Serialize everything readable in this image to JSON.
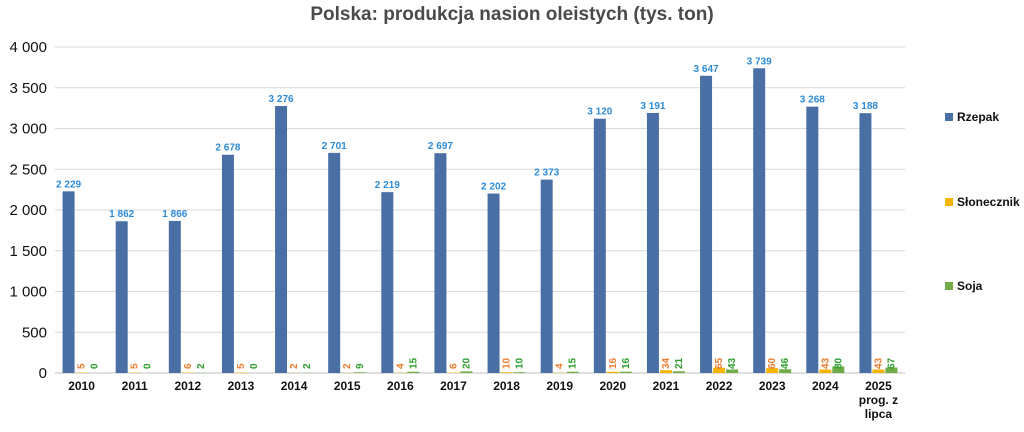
{
  "chart_data": {
    "type": "bar",
    "title": "Polska: produkcja nasion oleistych (tys. ton)",
    "xlabel": "",
    "ylabel": "",
    "ylim": [
      0,
      4000
    ],
    "yticks": [
      0,
      500,
      1000,
      1500,
      2000,
      2500,
      3000,
      3500,
      4000
    ],
    "ytick_labels": [
      "0",
      "500",
      "1 000",
      "1 500",
      "2 000",
      "2 500",
      "3 000",
      "3 500",
      "4 000"
    ],
    "grid": true,
    "legend_position": "right",
    "categories": [
      "2010",
      "2011",
      "2012",
      "2013",
      "2014",
      "2015",
      "2016",
      "2017",
      "2018",
      "2019",
      "2020",
      "2021",
      "2022",
      "2023",
      "2024",
      "2025 prog. z lipca"
    ],
    "category_lines": [
      [
        "2010"
      ],
      [
        "2011"
      ],
      [
        "2012"
      ],
      [
        "2013"
      ],
      [
        "2014"
      ],
      [
        "2015"
      ],
      [
        "2016"
      ],
      [
        "2017"
      ],
      [
        "2018"
      ],
      [
        "2019"
      ],
      [
        "2020"
      ],
      [
        "2021"
      ],
      [
        "2022"
      ],
      [
        "2023"
      ],
      [
        "2024"
      ],
      [
        "2025",
        "prog. z",
        "lipca"
      ]
    ],
    "series": [
      {
        "name": "Rzepak",
        "color": "#4a6fa5",
        "label_color": "#2e8bd6",
        "values": [
          2229,
          1862,
          1866,
          2678,
          3276,
          2701,
          2219,
          2697,
          2202,
          2373,
          3120,
          3191,
          3647,
          3739,
          3268,
          3188
        ],
        "labels": [
          "2 229",
          "1 862",
          "1 866",
          "2 678",
          "3 276",
          "2 701",
          "2 219",
          "2 697",
          "2 202",
          "2 373",
          "3 120",
          "3 191",
          "3 647",
          "3 739",
          "3 268",
          "3 188"
        ]
      },
      {
        "name": "Słonecznik",
        "color": "#f5b400",
        "label_color": "#ed7d31",
        "values": [
          5,
          5,
          6,
          5,
          2,
          2,
          4,
          6,
          10,
          4,
          16,
          34,
          65,
          60,
          43,
          43
        ],
        "labels": [
          "5",
          "5",
          "6",
          "5",
          "2",
          "2",
          "4",
          "6",
          "10",
          "4",
          "16",
          "34",
          "65",
          "60",
          "43",
          "43"
        ]
      },
      {
        "name": "Soja",
        "color": "#70ad47",
        "label_color": "#2e9e2e",
        "values": [
          0,
          0,
          2,
          0,
          2,
          9,
          15,
          20,
          10,
          15,
          16,
          21,
          43,
          46,
          80,
          67
        ],
        "labels": [
          "0",
          "0",
          "2",
          "0",
          "2",
          "9",
          "15",
          "20",
          "10",
          "15",
          "16",
          "21",
          "43",
          "46",
          "80",
          "67"
        ]
      }
    ]
  }
}
